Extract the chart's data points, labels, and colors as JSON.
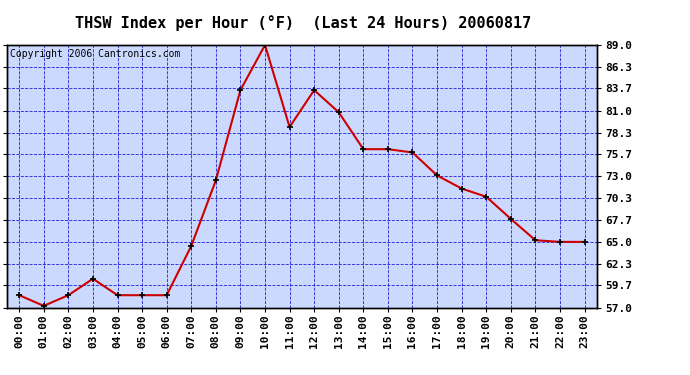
{
  "title": "THSW Index per Hour (°F)  (Last 24 Hours) 20060817",
  "copyright": "Copyright 2006 Cantronics.com",
  "hours": [
    "00:00",
    "01:00",
    "02:00",
    "03:00",
    "04:00",
    "05:00",
    "06:00",
    "07:00",
    "08:00",
    "09:00",
    "10:00",
    "11:00",
    "12:00",
    "13:00",
    "14:00",
    "15:00",
    "16:00",
    "17:00",
    "18:00",
    "19:00",
    "20:00",
    "21:00",
    "22:00",
    "23:00"
  ],
  "values": [
    58.5,
    57.2,
    58.5,
    60.5,
    58.5,
    58.5,
    58.5,
    64.5,
    72.5,
    83.5,
    89.0,
    79.0,
    83.5,
    80.8,
    76.3,
    76.3,
    75.9,
    73.1,
    71.5,
    70.5,
    67.8,
    65.2,
    65.0,
    65.0
  ],
  "yticks": [
    57.0,
    59.7,
    62.3,
    65.0,
    67.7,
    70.3,
    73.0,
    75.7,
    78.3,
    81.0,
    83.7,
    86.3,
    89.0
  ],
  "ymin": 57.0,
  "ymax": 89.0,
  "line_color": "#cc0000",
  "marker_color": "#000000",
  "bg_color": "#ccd9ff",
  "grid_color": "#0000cc",
  "outer_bg": "#ffffff",
  "title_fontsize": 11,
  "copyright_fontsize": 7,
  "tick_fontsize": 8
}
